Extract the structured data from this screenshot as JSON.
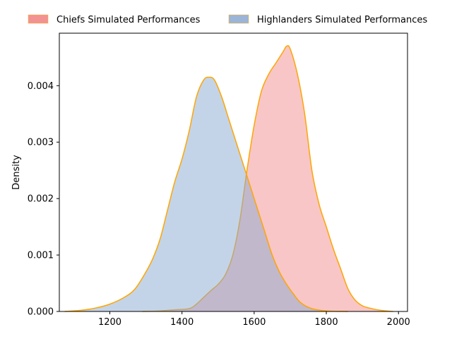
{
  "chart_data": {
    "type": "area",
    "xlabel": "",
    "ylabel": "Density",
    "xlim": [
      1060,
      2025
    ],
    "ylim": [
      0,
      0.00493
    ],
    "x_ticks": [
      1200,
      1400,
      1600,
      1800,
      2000
    ],
    "y_ticks": [
      0.0,
      0.001,
      0.002,
      0.003,
      0.004
    ],
    "x_tick_labels": [
      "1200",
      "1400",
      "1600",
      "1800",
      "2000"
    ],
    "y_tick_labels": [
      "0.000",
      "0.001",
      "0.002",
      "0.003",
      "0.004"
    ],
    "legend_placement": "top, above plot",
    "grid": false,
    "series": [
      {
        "name": "Chiefs Simulated Performances",
        "fill_color": "#f08080",
        "line_color": "#ffa500",
        "points": [
          [
            1290,
            0.0
          ],
          [
            1340,
            1e-05
          ],
          [
            1380,
            3e-05
          ],
          [
            1420,
            5e-05
          ],
          [
            1440,
            0.00013
          ],
          [
            1460,
            0.00025
          ],
          [
            1480,
            0.00037
          ],
          [
            1500,
            0.00048
          ],
          [
            1520,
            0.00065
          ],
          [
            1540,
            0.00098
          ],
          [
            1560,
            0.0016
          ],
          [
            1580,
            0.0025
          ],
          [
            1600,
            0.0033
          ],
          [
            1620,
            0.0039
          ],
          [
            1640,
            0.0042
          ],
          [
            1660,
            0.0044
          ],
          [
            1680,
            0.0046
          ],
          [
            1690,
            0.0047
          ],
          [
            1700,
            0.00465
          ],
          [
            1720,
            0.0042
          ],
          [
            1740,
            0.0035
          ],
          [
            1760,
            0.0025
          ],
          [
            1780,
            0.0019
          ],
          [
            1800,
            0.0015
          ],
          [
            1820,
            0.0011
          ],
          [
            1840,
            0.00075
          ],
          [
            1860,
            0.0004
          ],
          [
            1880,
            0.0002
          ],
          [
            1900,
            0.0001
          ],
          [
            1920,
            6e-05
          ],
          [
            1950,
            2e-05
          ],
          [
            1985,
            0.0
          ]
        ]
      },
      {
        "name": "Highlanders Simulated Performances",
        "fill_color": "#8aa9d1",
        "line_color": "#ffa500",
        "points": [
          [
            1075,
            0.0
          ],
          [
            1120,
            2e-05
          ],
          [
            1160,
            6e-05
          ],
          [
            1200,
            0.00013
          ],
          [
            1240,
            0.00025
          ],
          [
            1270,
            0.0004
          ],
          [
            1300,
            0.0007
          ],
          [
            1320,
            0.00095
          ],
          [
            1340,
            0.0013
          ],
          [
            1360,
            0.0018
          ],
          [
            1380,
            0.0023
          ],
          [
            1400,
            0.0027
          ],
          [
            1420,
            0.0032
          ],
          [
            1440,
            0.0038
          ],
          [
            1460,
            0.0041
          ],
          [
            1475,
            0.00415
          ],
          [
            1490,
            0.0041
          ],
          [
            1510,
            0.0038
          ],
          [
            1530,
            0.0034
          ],
          [
            1550,
            0.003
          ],
          [
            1570,
            0.0026
          ],
          [
            1590,
            0.0022
          ],
          [
            1610,
            0.0018
          ],
          [
            1630,
            0.0014
          ],
          [
            1650,
            0.001
          ],
          [
            1670,
            0.0007
          ],
          [
            1690,
            0.00048
          ],
          [
            1710,
            0.0003
          ],
          [
            1730,
            0.00015
          ],
          [
            1760,
            5e-05
          ],
          [
            1800,
            1e-05
          ],
          [
            1860,
            0.0
          ]
        ]
      }
    ]
  }
}
